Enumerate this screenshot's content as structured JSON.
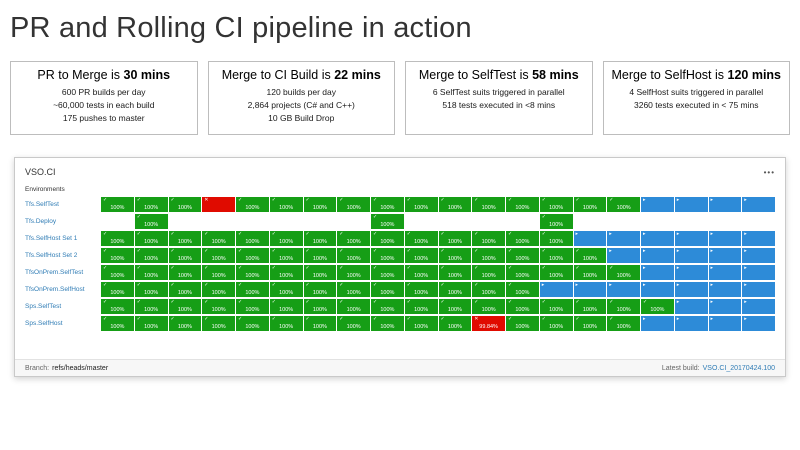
{
  "title": "PR and Rolling CI pipeline in action",
  "stat_boxes": [
    {
      "prefix": "PR to Merge is ",
      "bold": "30 mins",
      "lines": [
        "600 PR builds per day",
        "~60,000 tests in each build",
        "175 pushes to master"
      ]
    },
    {
      "prefix": "Merge to CI Build is ",
      "bold": "22 mins",
      "lines": [
        "120 builds per day",
        "2,864 projects (C# and C++)",
        "10 GB Build Drop"
      ]
    },
    {
      "prefix": "Merge to SelfTest is ",
      "bold": "58 mins",
      "lines": [
        "6 SelfTest suits triggered in parallel",
        "518 tests executed in <8 mins"
      ]
    },
    {
      "prefix": "Merge to SelfHost is ",
      "bold": "120 mins",
      "lines": [
        "4 SelfHost suits triggered in parallel",
        "3260 tests executed in < 75 mins"
      ]
    }
  ],
  "dashboard": {
    "app_title": "VSO.CI",
    "menu": "•••",
    "env_header": "Environments",
    "cell_pass_label": "100%",
    "rows": [
      {
        "name": "Tfs.SelfTest",
        "cells": [
          "P",
          "P",
          "P",
          "F",
          "P",
          "P",
          "P",
          "P",
          "P",
          "P",
          "P",
          "P",
          "P",
          "P",
          "P",
          "P",
          "R",
          "R",
          "R",
          "R"
        ]
      },
      {
        "name": "Tfs.Deploy",
        "cells": [
          "-",
          "P",
          "-",
          "-",
          "-",
          "-",
          "-",
          "-",
          "P",
          "-",
          "-",
          "-",
          "-",
          "P",
          "-",
          "-",
          "-",
          "-",
          "-",
          "-"
        ]
      },
      {
        "name": "Tfs.SelfHost Set 1",
        "cells": [
          "P",
          "P",
          "P",
          "P",
          "P",
          "P",
          "P",
          "P",
          "P",
          "P",
          "P",
          "P",
          "P",
          "P",
          "R",
          "R",
          "R",
          "R",
          "R",
          "R"
        ]
      },
      {
        "name": "Tfs.SelfHost Set 2",
        "cells": [
          "P",
          "P",
          "P",
          "P",
          "P",
          "P",
          "P",
          "P",
          "P",
          "P",
          "P",
          "P",
          "P",
          "P",
          "P",
          "R",
          "R",
          "R",
          "R",
          "R"
        ]
      },
      {
        "name": "TfsOnPrem.SelfTest",
        "cells": [
          "P",
          "P",
          "P",
          "P",
          "P",
          "P",
          "P",
          "P",
          "P",
          "P",
          "P",
          "P",
          "P",
          "P",
          "P",
          "P",
          "R",
          "R",
          "R",
          "R"
        ]
      },
      {
        "name": "TfsOnPrem.SelfHost",
        "cells": [
          "P",
          "P",
          "P",
          "P",
          "P",
          "P",
          "P",
          "P",
          "P",
          "P",
          "P",
          "P",
          "P",
          "R",
          "R",
          "R",
          "R",
          "R",
          "R",
          "R"
        ]
      },
      {
        "name": "Sps.SelfTest",
        "cells": [
          "P",
          "P",
          "P",
          "P",
          "P",
          "P",
          "P",
          "P",
          "P",
          "P",
          "P",
          "P",
          "P",
          "P",
          "P",
          "P",
          "P",
          "R",
          "R",
          "R"
        ]
      },
      {
        "name": "Sps.SelfHost",
        "cells": [
          "P",
          "P",
          "P",
          "P",
          "P",
          "P",
          "P",
          "P",
          "P",
          "P",
          "P",
          "F:99.84%",
          "P",
          "P",
          "P",
          "P",
          "R",
          "R",
          "R",
          "R"
        ]
      }
    ],
    "footer": {
      "branch_label": "Branch:",
      "branch_value": "refs/heads/master",
      "latest_label": "Latest build:",
      "latest_value": "VSO.CI_20170424.100"
    }
  },
  "icons": {
    "pass": "✓",
    "fail": "✕",
    "run": "▸"
  },
  "colors": {
    "pass": "#169e16",
    "fail": "#e00b00",
    "run": "#2d8bd8",
    "link": "#2f7cb5"
  }
}
